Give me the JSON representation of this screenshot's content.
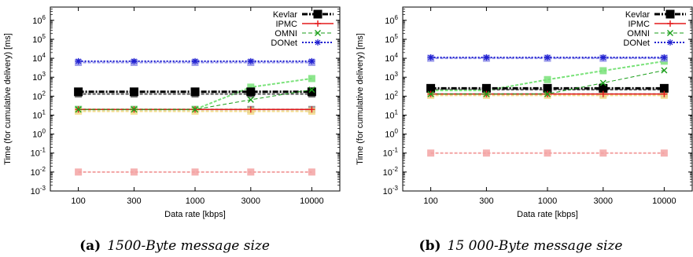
{
  "chart_data": [
    {
      "type": "line",
      "caption_letter": "(a)",
      "caption_text": "1500-Byte message size",
      "xlabel": "Data rate [kbps]",
      "ylabel": "Time (for cumulative delivery) [ms]",
      "x_scale": "log",
      "y_scale": "log",
      "x": [
        100,
        300,
        1000,
        3000,
        10000
      ],
      "x_tick_labels": [
        "100",
        "300",
        "1000",
        "3000",
        "10000"
      ],
      "ylim": [
        0.001,
        5000000
      ],
      "y_ticks": [
        {
          "base": "10",
          "exp": "6",
          "value": 1000000
        },
        {
          "base": "10",
          "exp": "5",
          "value": 100000
        },
        {
          "base": "10",
          "exp": "4",
          "value": 10000
        },
        {
          "base": "10",
          "exp": "3",
          "value": 1000
        },
        {
          "base": "10",
          "exp": "2",
          "value": 100
        },
        {
          "base": "10",
          "exp": "1",
          "value": 10
        },
        {
          "base": "10",
          "exp": "0",
          "value": 1
        },
        {
          "base": "10",
          "exp": "-1",
          "value": 0.1
        },
        {
          "base": "10",
          "exp": "-2",
          "value": 0.01
        },
        {
          "base": "10",
          "exp": "-3",
          "value": 0.001
        }
      ],
      "grid": false,
      "legend_position": "top-right",
      "series": [
        {
          "name": "Kevlar",
          "color": "#000000",
          "marker": "square",
          "style": "dashdot",
          "width": 3,
          "values": [
            170,
            170,
            170,
            170,
            170
          ]
        },
        {
          "name": "IPMC",
          "color": "#e41a1c",
          "marker": "plus",
          "style": "solid",
          "width": 1.5,
          "values": [
            20,
            20,
            20,
            20,
            20
          ]
        },
        {
          "name": "OMNI",
          "color": "#1a9e1a",
          "marker": "x",
          "style": "dashed",
          "width": 1,
          "values": [
            20,
            20,
            20,
            65,
            220
          ]
        },
        {
          "name": "DONet",
          "color": "#1f1fd0",
          "marker": "star",
          "style": "dotted",
          "width": 2,
          "values": [
            7000,
            7000,
            7000,
            7000,
            7000
          ]
        }
      ],
      "faded_series": [
        {
          "color": "#f3a3a3",
          "values": [
            0.01,
            0.01,
            0.01,
            0.01,
            0.01
          ]
        },
        {
          "color": "#8a8a8a",
          "values": [
            20,
            20,
            20,
            20,
            20
          ]
        },
        {
          "color": "#7ae27a",
          "values": [
            20,
            20,
            20,
            300,
            850
          ]
        },
        {
          "color": "#f4dc8c",
          "values": [
            16,
            16,
            16,
            16,
            16
          ]
        },
        {
          "color": "#5a5a5a",
          "values": [
            130,
            130,
            130,
            130,
            130
          ]
        },
        {
          "color": "#8f8fe8",
          "values": [
            6000,
            6000,
            6000,
            6000,
            6000
          ]
        }
      ]
    },
    {
      "type": "line",
      "caption_letter": "(b)",
      "caption_text": "15 000-Byte message size",
      "xlabel": "Data rate [kbps]",
      "ylabel": "Time (for cumulative delivery) [ms]",
      "x_scale": "log",
      "y_scale": "log",
      "x": [
        100,
        300,
        1000,
        3000,
        10000
      ],
      "x_tick_labels": [
        "100",
        "300",
        "1000",
        "3000",
        "10000"
      ],
      "ylim": [
        0.001,
        5000000
      ],
      "y_ticks": [
        {
          "base": "10",
          "exp": "6",
          "value": 1000000
        },
        {
          "base": "10",
          "exp": "5",
          "value": 100000
        },
        {
          "base": "10",
          "exp": "4",
          "value": 10000
        },
        {
          "base": "10",
          "exp": "3",
          "value": 1000
        },
        {
          "base": "10",
          "exp": "2",
          "value": 100
        },
        {
          "base": "10",
          "exp": "1",
          "value": 10
        },
        {
          "base": "10",
          "exp": "0",
          "value": 1
        },
        {
          "base": "10",
          "exp": "-1",
          "value": 0.1
        },
        {
          "base": "10",
          "exp": "-2",
          "value": 0.01
        },
        {
          "base": "10",
          "exp": "-3",
          "value": 0.001
        }
      ],
      "grid": false,
      "legend_position": "top-right",
      "series": [
        {
          "name": "Kevlar",
          "color": "#000000",
          "marker": "square",
          "style": "dashdot",
          "width": 3,
          "values": [
            260,
            260,
            260,
            260,
            260
          ]
        },
        {
          "name": "IPMC",
          "color": "#e41a1c",
          "marker": "plus",
          "style": "solid",
          "width": 1.5,
          "values": [
            130,
            130,
            130,
            130,
            130
          ]
        },
        {
          "name": "OMNI",
          "color": "#1a9e1a",
          "marker": "x",
          "style": "dashed",
          "width": 1,
          "values": [
            130,
            130,
            130,
            500,
            2300
          ]
        },
        {
          "name": "DONet",
          "color": "#1f1fd0",
          "marker": "star",
          "style": "dotted",
          "width": 2,
          "values": [
            11000,
            11000,
            11000,
            11000,
            11000
          ]
        }
      ],
      "faded_series": [
        {
          "color": "#f3a3a3",
          "values": [
            0.1,
            0.1,
            0.1,
            0.1,
            0.1
          ]
        },
        {
          "color": "#8a8a8a",
          "values": [
            130,
            130,
            130,
            130,
            130
          ]
        },
        {
          "color": "#5a5a5a",
          "values": [
            220,
            220,
            220,
            220,
            220
          ]
        },
        {
          "color": "#7ae27a",
          "values": [
            200,
            200,
            750,
            2200,
            7000
          ]
        },
        {
          "color": "#f4dc8c",
          "values": [
            110,
            110,
            110,
            110,
            110
          ]
        },
        {
          "color": "#8f8fe8",
          "values": [
            10000,
            10000,
            10000,
            10000,
            10000
          ]
        }
      ]
    }
  ]
}
